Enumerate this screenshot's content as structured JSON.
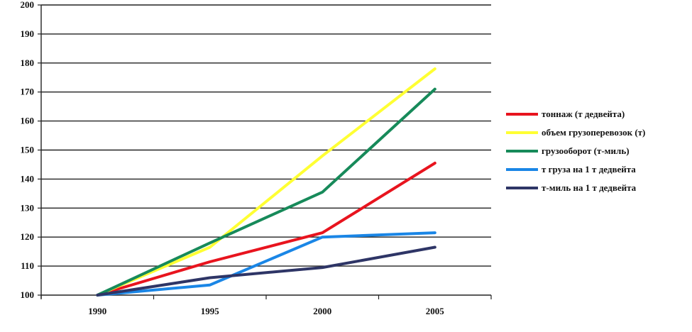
{
  "chart_data": {
    "type": "line",
    "x": [
      "1990",
      "1995",
      "2000",
      "2005"
    ],
    "ylim": [
      100,
      200
    ],
    "yticks": [
      100,
      110,
      120,
      130,
      140,
      150,
      160,
      170,
      180,
      190,
      200
    ],
    "grid": true,
    "legend_position": "right",
    "title": "",
    "xlabel": "",
    "ylabel": "",
    "series": [
      {
        "name": "тоннаж (т дедвейта)",
        "color": "#e8141e",
        "values": [
          100,
          111.5,
          121.5,
          145.5
        ]
      },
      {
        "name": "объем грузоперевозок (т)",
        "color": "#ffff33",
        "values": [
          100,
          116.5,
          148,
          178
        ]
      },
      {
        "name": "грузооборот (т-миль)",
        "color": "#178a5a",
        "values": [
          100,
          118,
          135.5,
          171
        ]
      },
      {
        "name": "т груза на 1 т дедвейта",
        "color": "#1a86e6",
        "values": [
          100,
          103.5,
          120,
          121.5
        ]
      },
      {
        "name": "т-миль на 1 т дедвейта",
        "color": "#2e3566",
        "values": [
          100,
          106,
          109.5,
          116.5
        ]
      }
    ]
  }
}
